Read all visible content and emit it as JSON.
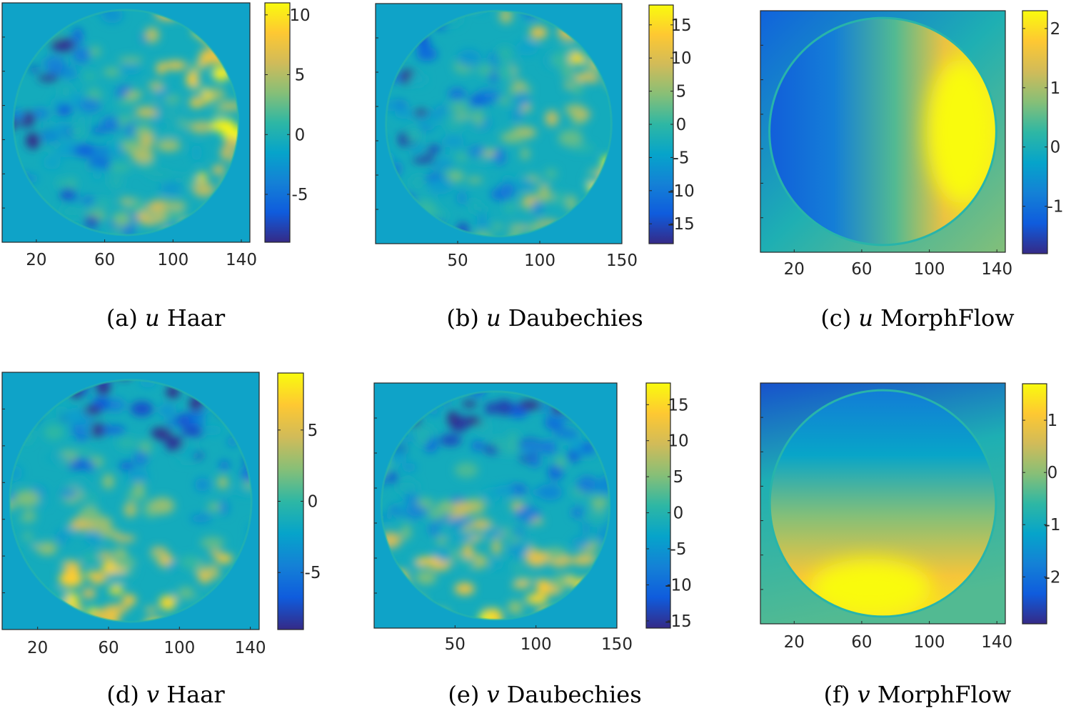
{
  "colormap": "parula",
  "colormap_stops": [
    "#352a87",
    "#0f5cdd",
    "#1481d6",
    "#06a4ca",
    "#2eb7a4",
    "#87bf77",
    "#d1bb59",
    "#fec832",
    "#f9fb0e"
  ],
  "background_color": "#0fa3c8",
  "chart_data": [
    {
      "id": "a",
      "type": "heatmap",
      "caption_prefix": "(a)",
      "variable": "u",
      "method": "Haar",
      "x_ticks": [
        "20",
        "60",
        "100",
        "140"
      ],
      "x_tick_values": [
        20,
        60,
        100,
        140
      ],
      "xlim": [
        0,
        145
      ],
      "colorbar_ticks": [
        "10",
        "5",
        "0",
        "-5"
      ],
      "colorbar_tick_values": [
        10,
        5,
        0,
        -5
      ],
      "clim": [
        -9,
        11
      ],
      "field": "noisy",
      "blob_seed": 11
    },
    {
      "id": "b",
      "type": "heatmap",
      "caption_prefix": "(b)",
      "variable": "u",
      "method": "Daubechies",
      "x_ticks": [
        "50",
        "100",
        "150"
      ],
      "x_tick_values": [
        50,
        100,
        150
      ],
      "xlim": [
        0,
        150
      ],
      "colorbar_ticks": [
        "15",
        "10",
        "5",
        "0",
        "-5",
        "-10",
        "-15"
      ],
      "colorbar_tick_values": [
        15,
        10,
        5,
        0,
        -5,
        -10,
        -15
      ],
      "clim": [
        -18,
        18
      ],
      "field": "noisy",
      "blob_seed": 27
    },
    {
      "id": "c",
      "type": "heatmap",
      "caption_prefix": "(c)",
      "variable": "u",
      "method": "MorphFlow",
      "x_ticks": [
        "20",
        "60",
        "100",
        "140"
      ],
      "x_tick_values": [
        20,
        60,
        100,
        140
      ],
      "xlim": [
        0,
        145
      ],
      "colorbar_ticks": [
        "2",
        "1",
        "0",
        "-1"
      ],
      "colorbar_tick_values": [
        2,
        1,
        0,
        -1
      ],
      "clim": [
        -1.8,
        2.3
      ],
      "field": "smooth"
    },
    {
      "id": "d",
      "type": "heatmap",
      "caption_prefix": "(d)",
      "variable": "v",
      "method": "Haar",
      "x_ticks": [
        "20",
        "60",
        "100",
        "140"
      ],
      "x_tick_values": [
        20,
        60,
        100,
        140
      ],
      "xlim": [
        0,
        145
      ],
      "colorbar_ticks": [
        "5",
        "0",
        "-5"
      ],
      "colorbar_tick_values": [
        5,
        0,
        -5
      ],
      "clim": [
        -9,
        9
      ],
      "field": "noisy",
      "blob_seed": 43
    },
    {
      "id": "e",
      "type": "heatmap",
      "caption_prefix": "(e)",
      "variable": "v",
      "method": "Daubechies",
      "x_ticks": [
        "50",
        "100",
        "150"
      ],
      "x_tick_values": [
        50,
        100,
        150
      ],
      "xlim": [
        0,
        150
      ],
      "colorbar_ticks": [
        "15",
        "10",
        "5",
        "0",
        "-5",
        "-10",
        "-15"
      ],
      "colorbar_tick_values": [
        15,
        10,
        5,
        0,
        -5,
        -10,
        -15
      ],
      "clim": [
        -16,
        18
      ],
      "field": "noisy",
      "blob_seed": 71
    },
    {
      "id": "f",
      "type": "heatmap",
      "caption_prefix": "(f)",
      "variable": "v",
      "method": "MorphFlow",
      "x_ticks": [
        "20",
        "60",
        "100",
        "140"
      ],
      "x_tick_values": [
        20,
        60,
        100,
        140
      ],
      "xlim": [
        0,
        145
      ],
      "colorbar_ticks": [
        "1",
        "0",
        "-1",
        "-2"
      ],
      "colorbar_tick_values": [
        1,
        0,
        -1,
        -2
      ],
      "clim": [
        -2.9,
        1.7
      ],
      "field": "smooth"
    }
  ]
}
